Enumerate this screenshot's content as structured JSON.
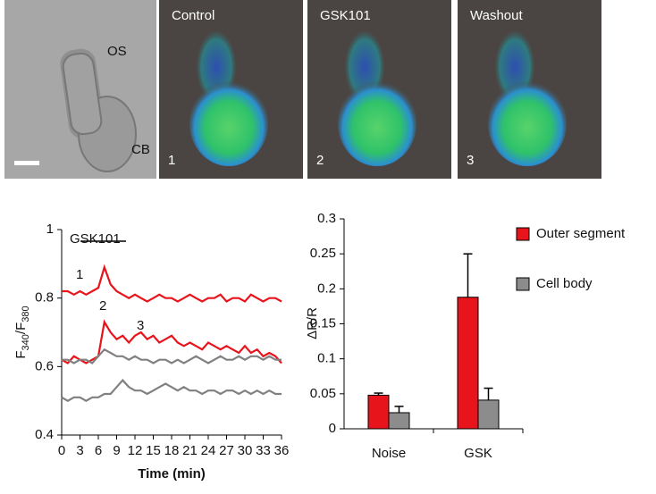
{
  "images": {
    "brightfield_labels": [
      "OS",
      "CB"
    ],
    "panels": [
      {
        "title": "Control",
        "number": "1"
      },
      {
        "title": "GSK101",
        "number": "2"
      },
      {
        "title": "Washout",
        "number": "3"
      }
    ]
  },
  "chart_data": [
    {
      "type": "line",
      "x": [
        0,
        1,
        2,
        3,
        4,
        5,
        6,
        7,
        8,
        9,
        10,
        11,
        12,
        13,
        14,
        15,
        16,
        17,
        18,
        19,
        20,
        21,
        22,
        23,
        24,
        25,
        26,
        27,
        28,
        29,
        30,
        31,
        32,
        33,
        34,
        35,
        36
      ],
      "series": [
        {
          "color": "#e8141b",
          "values": [
            0.82,
            0.82,
            0.81,
            0.82,
            0.81,
            0.82,
            0.83,
            0.89,
            0.84,
            0.82,
            0.81,
            0.8,
            0.81,
            0.8,
            0.79,
            0.8,
            0.81,
            0.8,
            0.8,
            0.79,
            0.8,
            0.81,
            0.8,
            0.79,
            0.8,
            0.8,
            0.81,
            0.79,
            0.8,
            0.8,
            0.79,
            0.81,
            0.8,
            0.79,
            0.8,
            0.8,
            0.79
          ]
        },
        {
          "color": "#e8141b",
          "values": [
            0.62,
            0.61,
            0.63,
            0.62,
            0.61,
            0.62,
            0.63,
            0.73,
            0.7,
            0.68,
            0.69,
            0.67,
            0.69,
            0.7,
            0.68,
            0.69,
            0.67,
            0.68,
            0.69,
            0.67,
            0.66,
            0.67,
            0.66,
            0.65,
            0.67,
            0.66,
            0.65,
            0.66,
            0.65,
            0.64,
            0.66,
            0.64,
            0.65,
            0.63,
            0.64,
            0.63,
            0.61
          ]
        },
        {
          "color": "#808080",
          "values": [
            0.62,
            0.62,
            0.61,
            0.62,
            0.62,
            0.61,
            0.63,
            0.65,
            0.64,
            0.63,
            0.63,
            0.62,
            0.63,
            0.62,
            0.62,
            0.61,
            0.62,
            0.62,
            0.61,
            0.62,
            0.61,
            0.62,
            0.63,
            0.62,
            0.61,
            0.62,
            0.63,
            0.62,
            0.62,
            0.63,
            0.62,
            0.63,
            0.63,
            0.62,
            0.63,
            0.62,
            0.62
          ]
        },
        {
          "color": "#808080",
          "values": [
            0.51,
            0.5,
            0.51,
            0.51,
            0.5,
            0.51,
            0.51,
            0.52,
            0.52,
            0.54,
            0.56,
            0.54,
            0.53,
            0.53,
            0.52,
            0.53,
            0.54,
            0.55,
            0.54,
            0.53,
            0.54,
            0.53,
            0.53,
            0.52,
            0.53,
            0.53,
            0.52,
            0.53,
            0.53,
            0.52,
            0.53,
            0.52,
            0.53,
            0.52,
            0.53,
            0.52,
            0.52
          ]
        }
      ],
      "xlim": [
        0,
        36
      ],
      "xticks": [
        0,
        3,
        6,
        9,
        12,
        15,
        18,
        21,
        24,
        27,
        30,
        33,
        36
      ],
      "ylim": [
        0.4,
        1
      ],
      "yticks": [
        0.4,
        0.6,
        0.8,
        1
      ],
      "xlabel": "Time (min)",
      "ylabel_parts": [
        "F",
        "340",
        "/F",
        "380"
      ],
      "bracket_label": "GSK101",
      "annotations": [
        "1",
        "2",
        "3"
      ]
    },
    {
      "type": "bar",
      "categories": [
        "Noise",
        "GSK"
      ],
      "series": [
        {
          "name": "Outer segment",
          "color": "#e8141b",
          "values": [
            0.048,
            0.188
          ],
          "errors": [
            0.003,
            0.062
          ]
        },
        {
          "name": "Cell body",
          "color": "#8c8c8c",
          "values": [
            0.023,
            0.041
          ],
          "errors": [
            0.009,
            0.017
          ]
        }
      ],
      "ylim": [
        0,
        0.3
      ],
      "yticks": [
        0,
        0.05,
        0.1,
        0.15,
        0.2,
        0.25,
        0.3
      ],
      "ylabel": "ΔR/R",
      "legend": "right"
    }
  ]
}
